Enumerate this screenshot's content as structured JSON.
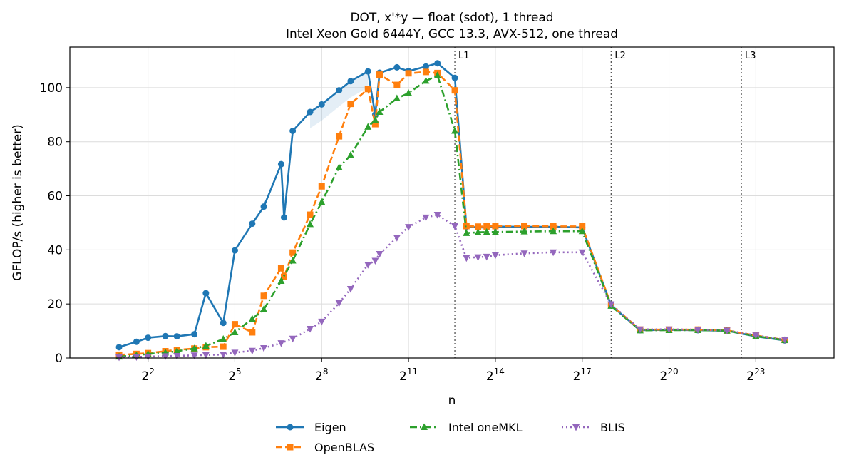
{
  "chart_data": {
    "type": "line",
    "title": "DOT, x'*y — float (sdot), 1 thread",
    "subtitle": "Intel Xeon Gold 6444Y, GCC 13.3, AVX-512, one thread",
    "xlabel": "n",
    "ylabel": "GFLOP/s (higher is better)",
    "x_scale": "log2",
    "xlim_log2": [
      -0.7,
      25.7
    ],
    "ylim": [
      0,
      115
    ],
    "x_ticks": [
      {
        "base": "2",
        "exp": "2",
        "log2": 2
      },
      {
        "base": "2",
        "exp": "5",
        "log2": 5
      },
      {
        "base": "2",
        "exp": "8",
        "log2": 8
      },
      {
        "base": "2",
        "exp": "11",
        "log2": 11
      },
      {
        "base": "2",
        "exp": "14",
        "log2": 14
      },
      {
        "base": "2",
        "exp": "17",
        "log2": 17
      },
      {
        "base": "2",
        "exp": "20",
        "log2": 20
      },
      {
        "base": "2",
        "exp": "23",
        "log2": 23
      }
    ],
    "y_ticks": [
      "0",
      "20",
      "40",
      "60",
      "80",
      "100"
    ],
    "y_tick_values": [
      0,
      20,
      40,
      60,
      80,
      100
    ],
    "grid": true,
    "legend_position": "bottom-center",
    "reference_lines": [
      {
        "label": "L1",
        "log2": 12.6
      },
      {
        "label": "L2",
        "log2": 18.0
      },
      {
        "label": "L3",
        "log2": 22.5
      }
    ],
    "series": [
      {
        "name": "Eigen",
        "color": "#1f77b4",
        "dash": "solid",
        "marker": "circle",
        "log2x": [
          1,
          1.6,
          2,
          2.6,
          3,
          3.6,
          4,
          4.6,
          5,
          5.6,
          6,
          6.6,
          6.7,
          7,
          7.6,
          8,
          8.6,
          9,
          9.6,
          9.85,
          10,
          10.6,
          11,
          11.6,
          12,
          12.6,
          13,
          13.4,
          13.7,
          14,
          15,
          16,
          17
        ],
        "values": [
          4,
          6,
          7.5,
          8.1,
          8,
          8.8,
          24,
          13,
          39.8,
          49.7,
          56,
          71.7,
          52,
          84,
          91,
          93.8,
          99,
          102.4,
          106,
          90,
          105.5,
          107.5,
          106.1,
          107.8,
          109,
          103.6,
          48.6,
          48.3,
          48.3,
          48.6,
          48.5,
          48.5,
          48.3
        ]
      },
      {
        "name": "OpenBLAS",
        "color": "#ff7f0e",
        "dash": "dashed",
        "marker": "square",
        "log2x": [
          1,
          1.6,
          2,
          2.6,
          3,
          3.6,
          4,
          4.6,
          5,
          5.6,
          6,
          6.6,
          6.7,
          7,
          7.6,
          8,
          8.6,
          9,
          9.6,
          9.85,
          10,
          10.6,
          11,
          11.6,
          12,
          12.6,
          13,
          13.4,
          13.7,
          14,
          15,
          16,
          17
        ],
        "values": [
          1.2,
          1.5,
          1.8,
          2.5,
          3,
          3.5,
          4,
          4.2,
          12.5,
          9.5,
          23,
          33.2,
          30,
          39,
          53,
          63.5,
          82,
          94,
          99.5,
          86.5,
          104.8,
          101,
          105.3,
          105.8,
          105.4,
          99,
          48.8,
          48.6,
          48.7,
          48.8,
          48.8,
          48.7,
          48.7
        ]
      },
      {
        "name": "Intel oneMKL",
        "color": "#2ca02c",
        "dash": "dashdot",
        "marker": "triangle-up",
        "log2x": [
          1,
          1.6,
          2,
          2.6,
          3,
          3.6,
          4,
          4.6,
          5,
          5.6,
          6,
          6.6,
          7,
          7.6,
          8,
          8.6,
          9,
          9.6,
          9.85,
          10,
          10.6,
          11,
          11.6,
          12,
          12.6,
          13,
          13.4,
          13.7,
          14,
          15,
          16,
          17
        ],
        "values": [
          0.5,
          1,
          1.5,
          2,
          2.5,
          3.5,
          4.5,
          7,
          9.5,
          14.5,
          18,
          28.5,
          36,
          49.5,
          57.7,
          70.5,
          75,
          85.5,
          88,
          91,
          96,
          98,
          102.5,
          104.5,
          84,
          46.2,
          46.5,
          46.6,
          46.6,
          46.8,
          46.9,
          46.9
        ]
      },
      {
        "name": "BLIS",
        "color": "#9467bd",
        "dash": "dotted",
        "marker": "triangle-down",
        "log2x": [
          1,
          1.6,
          2,
          2.6,
          3,
          3.6,
          4,
          4.6,
          5,
          5.6,
          6,
          6.6,
          7,
          7.6,
          8,
          8.6,
          9,
          9.6,
          9.85,
          10,
          10.6,
          11,
          11.6,
          12,
          12.6,
          13,
          13.4,
          13.7,
          14,
          15,
          16,
          17
        ],
        "values": [
          0.3,
          0.4,
          0.5,
          0.7,
          0.8,
          1,
          1.1,
          1.3,
          2,
          2.7,
          3.7,
          5.5,
          7.2,
          10.8,
          13.5,
          20.3,
          25.6,
          34.5,
          36,
          38.5,
          44.5,
          48.5,
          52,
          53,
          48.8,
          37,
          37.3,
          37.5,
          38,
          38.7,
          39.1,
          39.1
        ]
      }
    ],
    "tail_series": {
      "log2x": [
        18,
        19,
        20,
        21,
        22,
        23,
        24
      ],
      "Eigen": [
        19.5,
        10.3,
        10.4,
        10.3,
        10.1,
        8.0,
        6.5
      ],
      "OpenBLAS": [
        19.7,
        10.5,
        10.5,
        10.5,
        10.2,
        8.3,
        6.7
      ],
      "Intel oneMKL": [
        19.3,
        10.2,
        10.3,
        10.3,
        10.1,
        8.1,
        6.6
      ],
      "BLIS": [
        19.9,
        10.6,
        10.6,
        10.5,
        10.2,
        8.4,
        6.8
      ]
    }
  }
}
